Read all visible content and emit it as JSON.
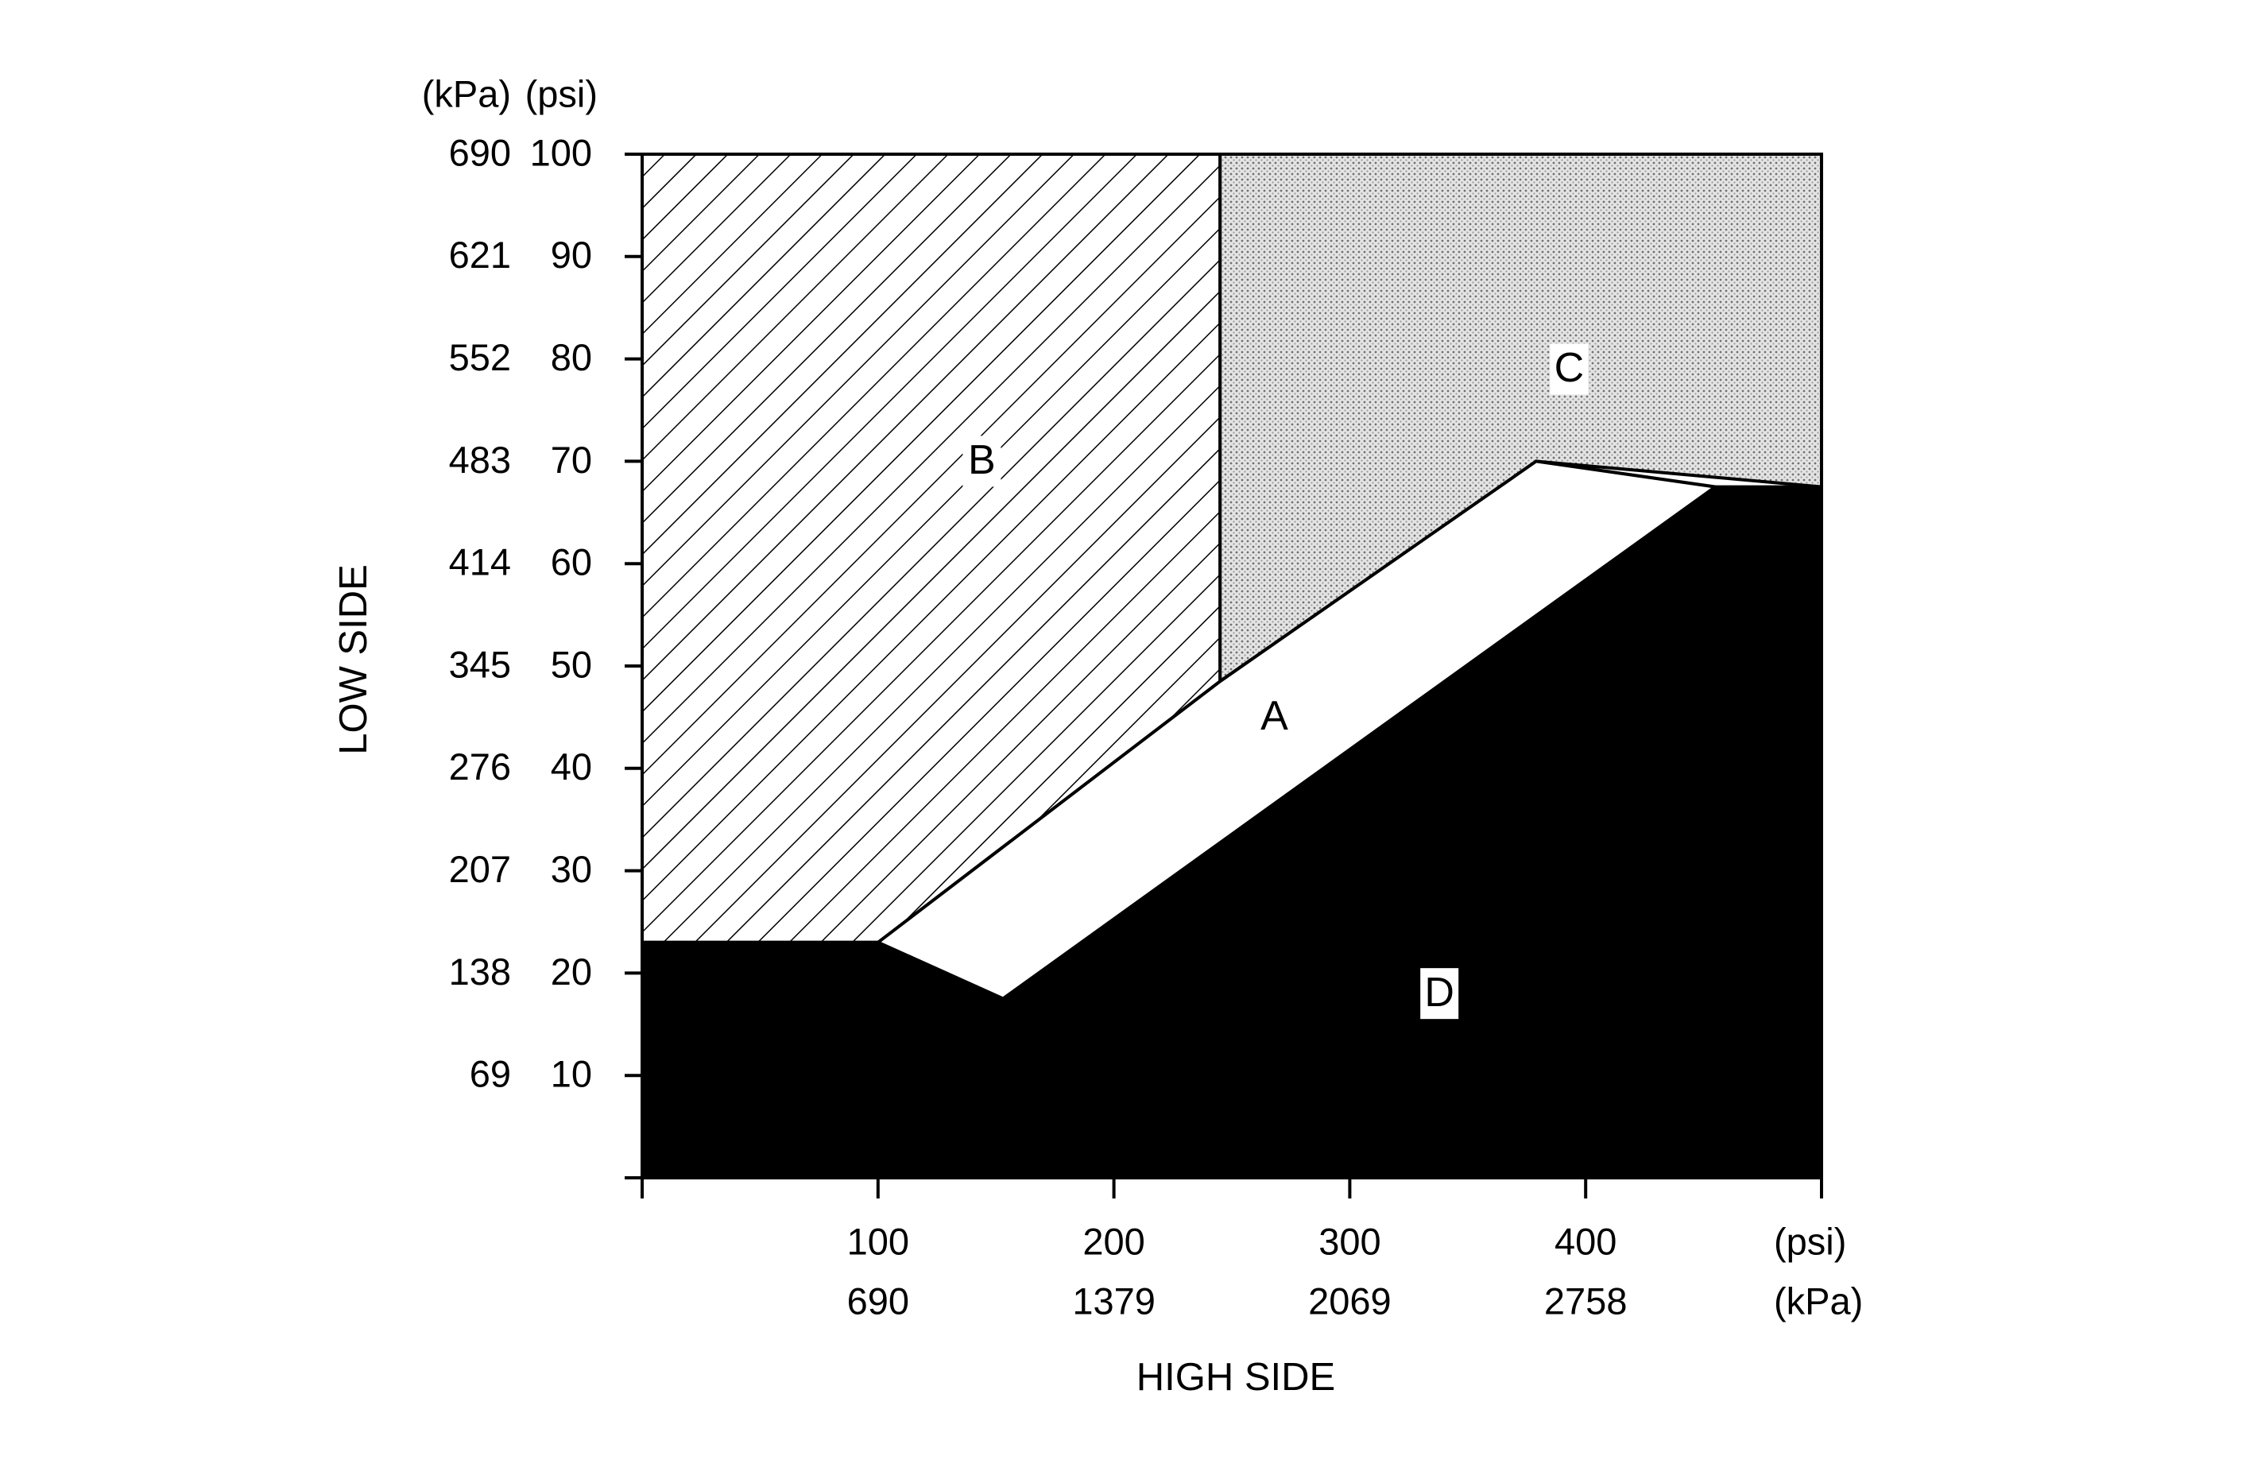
{
  "chart_data": {
    "type": "area",
    "xlabel": "HIGH SIDE",
    "ylabel": "LOW SIDE",
    "xlim": [
      0,
      500
    ],
    "ylim": [
      0,
      100
    ],
    "x_unit_primary": "(psi)",
    "x_unit_secondary": "(kPa)",
    "y_unit_primary": "(psi)",
    "y_unit_secondary": "(kPa)",
    "x_ticks": [
      {
        "psi": 100,
        "label_psi": "100",
        "label_kpa": "690"
      },
      {
        "psi": 200,
        "label_psi": "200",
        "label_kpa": "1379"
      },
      {
        "psi": 300,
        "label_psi": "300",
        "label_kpa": "2069"
      },
      {
        "psi": 400,
        "label_psi": "400",
        "label_kpa": "2758"
      },
      {
        "psi": 500,
        "label_psi": "",
        "label_kpa": ""
      }
    ],
    "x_minor_ticks": [
      0
    ],
    "y_ticks": [
      {
        "psi": 10,
        "label_psi": "10",
        "label_kpa": "69"
      },
      {
        "psi": 20,
        "label_psi": "20",
        "label_kpa": "138"
      },
      {
        "psi": 30,
        "label_psi": "30",
        "label_kpa": "207"
      },
      {
        "psi": 40,
        "label_psi": "40",
        "label_kpa": "276"
      },
      {
        "psi": 50,
        "label_psi": "50",
        "label_kpa": "345"
      },
      {
        "psi": 60,
        "label_psi": "60",
        "label_kpa": "414"
      },
      {
        "psi": 70,
        "label_psi": "70",
        "label_kpa": "483"
      },
      {
        "psi": 80,
        "label_psi": "80",
        "label_kpa": "552"
      },
      {
        "psi": 90,
        "label_psi": "90",
        "label_kpa": "621"
      },
      {
        "psi": 100,
        "label_psi": "100",
        "label_kpa": "690"
      }
    ],
    "y_minor_ticks": [
      0
    ],
    "regions": [
      {
        "label": "B",
        "fill": "hatched",
        "polygon": [
          [
            0,
            100
          ],
          [
            245,
            100
          ],
          [
            245,
            48.5
          ],
          [
            100,
            23
          ],
          [
            0,
            23
          ]
        ],
        "label_at": [
          144,
          70
        ]
      },
      {
        "label": "C",
        "fill": "dotted",
        "polygon": [
          [
            245,
            100
          ],
          [
            500,
            100
          ],
          [
            500,
            67.5
          ],
          [
            379,
            70
          ],
          [
            245,
            48.5
          ]
        ],
        "label_at": [
          393,
          79
        ]
      },
      {
        "label": "A",
        "fill": "white",
        "polygon": [
          [
            100,
            23
          ],
          [
            245,
            48.5
          ],
          [
            379,
            70
          ],
          [
            455,
            67.5
          ],
          [
            153,
            17.5
          ]
        ],
        "label_at": [
          268,
          45
        ]
      },
      {
        "label": "D",
        "fill": "black",
        "polygon": [
          [
            0,
            0
          ],
          [
            500,
            0
          ],
          [
            500,
            67.5
          ],
          [
            455,
            67.5
          ],
          [
            153,
            17.5
          ],
          [
            100,
            23
          ],
          [
            0,
            23
          ]
        ],
        "label_at": [
          338,
          18
        ]
      }
    ],
    "grid": false,
    "legend": "none"
  }
}
